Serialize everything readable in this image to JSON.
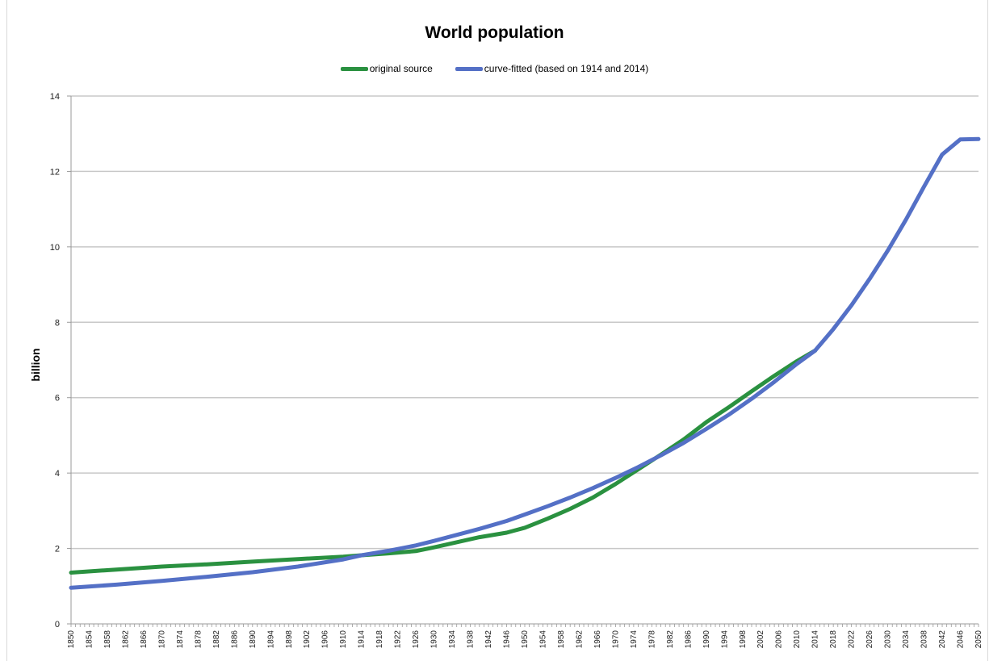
{
  "chart_data": {
    "type": "line",
    "title": "World population",
    "ylabel": "billion",
    "xlabel": "",
    "ylim": [
      0,
      14
    ],
    "yticks": [
      0,
      2,
      4,
      6,
      8,
      10,
      12,
      14
    ],
    "xlim": [
      1850,
      2050
    ],
    "xtick_step": 4,
    "grid": "horizontal",
    "legend_position": "top-center",
    "series": [
      {
        "name": "original source",
        "color": "#2a9140",
        "x": [
          1850,
          1860,
          1870,
          1880,
          1890,
          1900,
          1910,
          1914,
          1920,
          1926,
          1930,
          1940,
          1946,
          1950,
          1955,
          1960,
          1965,
          1970,
          1975,
          1980,
          1985,
          1990,
          1995,
          2000,
          2005,
          2010,
          2014
        ],
        "values": [
          1.36,
          1.44,
          1.52,
          1.58,
          1.65,
          1.72,
          1.78,
          1.82,
          1.87,
          1.93,
          2.03,
          2.3,
          2.42,
          2.55,
          2.79,
          3.05,
          3.35,
          3.71,
          4.1,
          4.49,
          4.89,
          5.35,
          5.75,
          6.17,
          6.58,
          6.97,
          7.25
        ]
      },
      {
        "name": "curve-fitted (based on 1914 and 2014)",
        "color": "#5470c6",
        "x": [
          1850,
          1860,
          1870,
          1880,
          1890,
          1900,
          1910,
          1914,
          1920,
          1926,
          1930,
          1940,
          1946,
          1950,
          1955,
          1960,
          1965,
          1970,
          1975,
          1980,
          1985,
          1990,
          1995,
          2000,
          2005,
          2010,
          2014,
          2018,
          2022,
          2026,
          2030,
          2034,
          2038,
          2042,
          2046,
          2050
        ],
        "values": [
          0.96,
          1.04,
          1.14,
          1.25,
          1.37,
          1.52,
          1.71,
          1.82,
          1.94,
          2.08,
          2.2,
          2.52,
          2.73,
          2.9,
          3.12,
          3.35,
          3.6,
          3.87,
          4.16,
          4.47,
          4.8,
          5.17,
          5.55,
          5.97,
          6.42,
          6.9,
          7.25,
          7.82,
          8.45,
          9.15,
          9.9,
          10.72,
          11.6,
          12.45,
          12.85,
          12.86
        ]
      }
    ]
  }
}
